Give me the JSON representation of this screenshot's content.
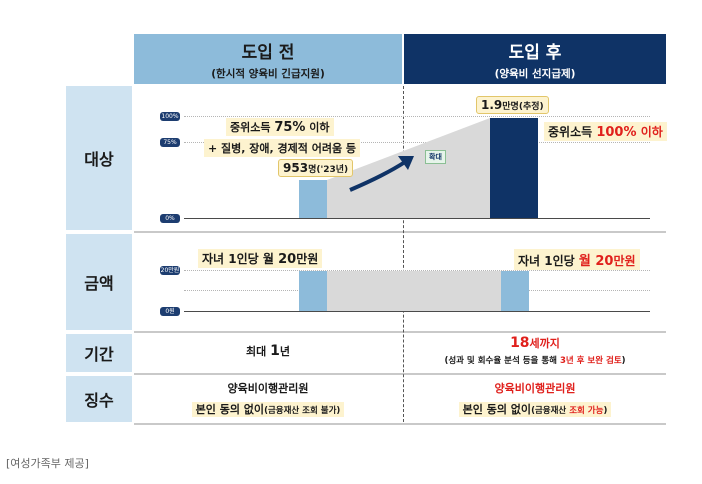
{
  "header": {
    "before_title": "도입 전",
    "before_sub": "(한시적 양육비 긴급지원)",
    "after_title": "도입 후",
    "after_sub": "(양육비 선지급제)"
  },
  "rows": {
    "target": "대상",
    "amount": "금액",
    "period": "기간",
    "collection": "징수"
  },
  "target": {
    "ticks": [
      "100%",
      "75%",
      "0%"
    ],
    "before_line1_a": "중위소득 ",
    "before_line1_b": "75%",
    "before_line1_c": " 이하",
    "before_line2": "+ 질병, 장애, 경제적 어려움 등",
    "before_count_a": "953",
    "before_count_b": "명('23년)",
    "expand_label": "확대",
    "after_count_a": "1.9",
    "after_count_b": "만명(추정)",
    "after_line_a": "중위소득 ",
    "after_line_b": "100%",
    "after_line_c": " 이하"
  },
  "amount": {
    "ticks": [
      "20만원",
      "0원"
    ],
    "before_a": "자녀 1인당 월 ",
    "before_b": "20",
    "before_c": "만원",
    "after_a": "자녀 1인당 ",
    "after_b": "월 20",
    "after_c": "만원"
  },
  "period": {
    "before_a": "최대 ",
    "before_b": "1",
    "before_c": "년",
    "after_a": "18",
    "after_b": "세까지",
    "after_note_a": "(성과 및 회수율 분석 등을 통해 ",
    "after_note_b": "3년 후 보완 검토",
    "after_note_c": ")"
  },
  "collection": {
    "before_org": "양육비이행관리원",
    "before_cond_a": "본인 동의 없이",
    "before_cond_b": "(금융재산 조회 불가)",
    "after_org": "양육비이행관리원",
    "after_cond_a": "본인 동의 없이",
    "after_cond_b": "(금융재산 ",
    "after_cond_c": "조회 가능",
    "after_cond_d": ")"
  },
  "source": "[여성가족부 제공]",
  "colors": {
    "before_header": "#8dbbda",
    "after_header": "#0f3366",
    "row_label": "#cfe3f1",
    "bar_light": "#8dbbda",
    "bar_dark": "#0f3366",
    "highlight": "#fdf3cf",
    "accent_red": "#e0201c"
  }
}
